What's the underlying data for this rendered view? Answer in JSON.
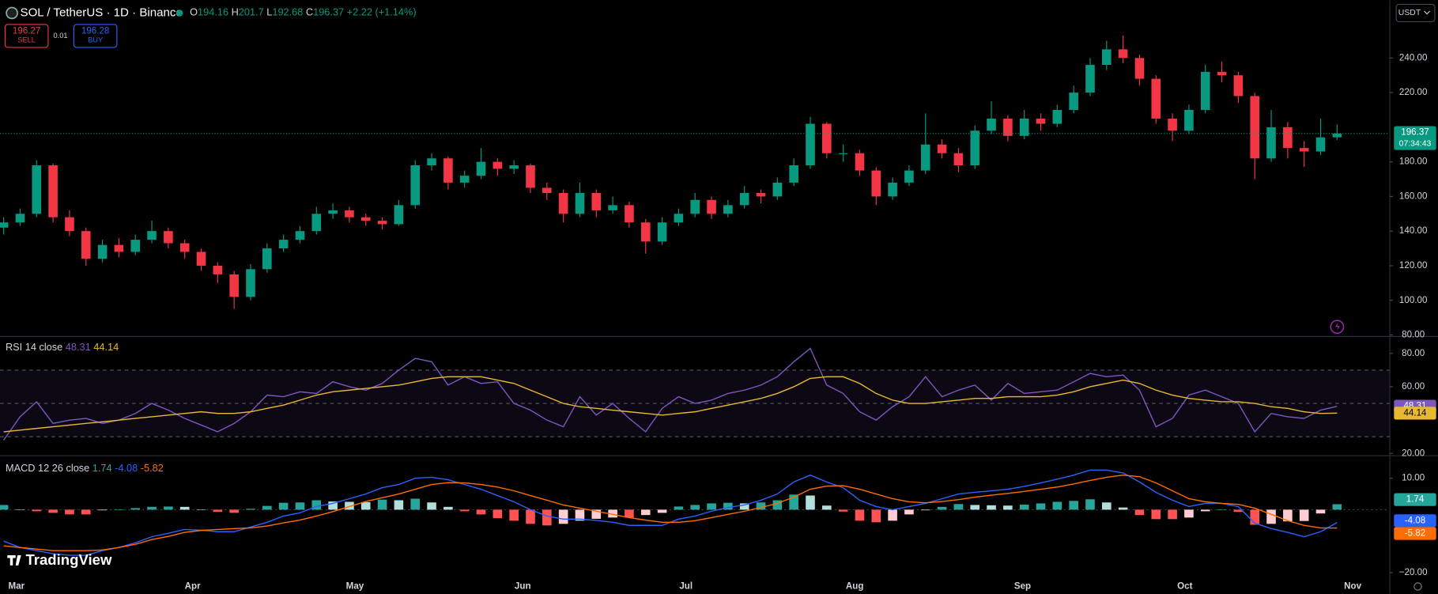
{
  "header": {
    "symbol": "SOL / TetherUS · 1D · Binance",
    "ohlc_labels": [
      "O",
      "H",
      "L",
      "C"
    ],
    "change": "+2.22 (+1.14%)",
    "sell_price": 196.27,
    "sell_label": "SELL",
    "spread": 0.01,
    "buy_price": 196.28,
    "buy_label": "BUY",
    "currency": "USDT",
    "brand": "TradingView"
  },
  "chart_data": [
    {
      "type": "candlestick",
      "up_color": "#089981",
      "down_color": "#f23645",
      "countdown": "07:34:43",
      "time_labels": [
        "Mar",
        "Apr",
        "May",
        "Jun",
        "Jul",
        "Aug",
        "Sep",
        "Oct",
        "Nov"
      ],
      "ylim": [
        79.4,
        273.4
      ],
      "yticks": [
        {
          "value": 80,
          "label": "80.00"
        },
        {
          "value": 100,
          "label": "100.00"
        },
        {
          "value": 120,
          "label": "120.00"
        },
        {
          "value": 140,
          "label": "140.00"
        },
        {
          "value": 160,
          "label": "160.00"
        },
        {
          "value": 180,
          "label": "180.00"
        },
        {
          "value": 220,
          "label": "220.00"
        },
        {
          "value": 240,
          "label": "240.00"
        }
      ],
      "candles": [
        [
          142,
          148,
          138,
          145
        ],
        [
          145,
          153,
          143,
          150
        ],
        [
          150,
          181,
          148,
          178
        ],
        [
          178,
          179,
          145,
          148
        ],
        [
          148,
          152,
          137,
          140
        ],
        [
          140,
          142,
          120,
          124
        ],
        [
          124,
          135,
          122,
          132
        ],
        [
          132,
          136,
          125,
          128
        ],
        [
          128,
          138,
          126,
          135
        ],
        [
          135,
          146,
          133,
          140
        ],
        [
          140,
          142,
          130,
          133
        ],
        [
          133,
          135,
          124,
          128
        ],
        [
          128,
          130,
          117,
          120
        ],
        [
          120,
          122,
          110,
          115
        ],
        [
          115,
          117,
          95,
          102
        ],
        [
          102,
          121,
          100,
          118
        ],
        [
          118,
          133,
          116,
          130
        ],
        [
          130,
          138,
          128,
          135
        ],
        [
          135,
          143,
          133,
          140
        ],
        [
          140,
          154,
          138,
          150
        ],
        [
          150,
          156,
          147,
          152
        ],
        [
          152,
          154,
          145,
          148
        ],
        [
          148,
          150,
          143,
          146
        ],
        [
          146,
          148,
          141,
          144
        ],
        [
          144,
          158,
          143,
          155
        ],
        [
          155,
          181,
          153,
          178
        ],
        [
          178,
          185,
          175,
          182
        ],
        [
          182,
          183,
          164,
          168
        ],
        [
          168,
          175,
          165,
          172
        ],
        [
          172,
          188,
          170,
          180
        ],
        [
          180,
          182,
          172,
          176
        ],
        [
          176,
          181,
          173,
          178
        ],
        [
          178,
          179,
          162,
          165
        ],
        [
          165,
          168,
          158,
          162
        ],
        [
          162,
          164,
          145,
          150
        ],
        [
          150,
          168,
          148,
          162
        ],
        [
          162,
          164,
          148,
          152
        ],
        [
          152,
          160,
          150,
          155
        ],
        [
          155,
          157,
          142,
          145
        ],
        [
          145,
          147,
          127,
          134
        ],
        [
          134,
          148,
          132,
          145
        ],
        [
          145,
          153,
          143,
          150
        ],
        [
          150,
          162,
          148,
          158
        ],
        [
          158,
          160,
          147,
          150
        ],
        [
          150,
          158,
          148,
          155
        ],
        [
          155,
          166,
          153,
          162
        ],
        [
          162,
          164,
          156,
          160
        ],
        [
          160,
          171,
          158,
          168
        ],
        [
          168,
          182,
          166,
          178
        ],
        [
          178,
          206,
          176,
          202
        ],
        [
          202,
          203,
          182,
          185
        ],
        [
          185,
          190,
          180,
          185
        ],
        [
          185,
          187,
          172,
          175
        ],
        [
          175,
          177,
          155,
          160
        ],
        [
          160,
          171,
          158,
          168
        ],
        [
          168,
          178,
          166,
          175
        ],
        [
          175,
          208,
          173,
          190
        ],
        [
          190,
          193,
          182,
          185
        ],
        [
          185,
          188,
          174,
          178
        ],
        [
          178,
          201,
          176,
          198
        ],
        [
          198,
          215,
          196,
          205
        ],
        [
          205,
          207,
          192,
          195
        ],
        [
          195,
          210,
          193,
          205
        ],
        [
          205,
          208,
          198,
          202
        ],
        [
          202,
          213,
          200,
          210
        ],
        [
          210,
          224,
          208,
          220
        ],
        [
          220,
          240,
          218,
          236
        ],
        [
          236,
          250,
          233,
          245
        ],
        [
          245,
          253,
          237,
          240
        ],
        [
          240,
          242,
          224,
          228
        ],
        [
          228,
          230,
          202,
          205
        ],
        [
          205,
          208,
          192,
          198
        ],
        [
          198,
          213,
          196,
          210
        ],
        [
          210,
          236,
          208,
          232
        ],
        [
          232,
          238,
          226,
          230
        ],
        [
          230,
          232,
          214,
          218
        ],
        [
          218,
          220,
          170,
          182
        ],
        [
          182,
          210,
          180,
          200
        ],
        [
          200,
          203,
          182,
          188
        ],
        [
          188,
          192,
          177,
          186
        ],
        [
          186,
          205,
          184,
          194.15
        ],
        [
          194.16,
          201.7,
          192.68,
          196.37
        ]
      ]
    },
    {
      "type": "rsi",
      "title": "RSI 14 close",
      "ylim": [
        18.9,
        89.9
      ],
      "band_levels": [
        30,
        50,
        70
      ],
      "band_color": "#7e57c2",
      "yticks": [
        {
          "value": 20,
          "label": "20.00"
        },
        {
          "value": 60,
          "label": "60.00"
        },
        {
          "value": 80,
          "label": "80.00"
        }
      ],
      "series": [
        {
          "color": "#7e57c2",
          "values": [
            28,
            42,
            51,
            38,
            40,
            41,
            38,
            40,
            44,
            50,
            46,
            41,
            37,
            33,
            38,
            45,
            55,
            54,
            57,
            56,
            63,
            60,
            58,
            62,
            70,
            77,
            75,
            61,
            66,
            62,
            63,
            50,
            46,
            40,
            36,
            54,
            43,
            50,
            41,
            33,
            47,
            54,
            50,
            52,
            56,
            58,
            61,
            66,
            75,
            83,
            61,
            56,
            45,
            40,
            48,
            54,
            66,
            54,
            58,
            61,
            52,
            62,
            56,
            57,
            58,
            63,
            68,
            66,
            67,
            58,
            36,
            41,
            55,
            58,
            54,
            50,
            33,
            44,
            42,
            41,
            46,
            48.31
          ]
        },
        {
          "color": "#e8b830",
          "values": [
            33,
            34,
            35,
            36,
            37,
            38,
            39,
            40,
            41,
            42,
            43,
            44,
            45,
            44,
            44,
            45,
            47,
            49,
            52,
            55,
            57,
            58,
            59,
            60,
            61,
            63,
            65,
            66,
            66,
            66,
            64,
            62,
            58,
            54,
            50,
            48,
            47,
            46,
            45,
            44,
            43,
            44,
            45,
            47,
            49,
            51,
            53,
            56,
            60,
            65,
            66,
            66,
            62,
            56,
            52,
            50,
            50,
            51,
            52,
            53,
            53,
            54,
            54,
            54,
            55,
            57,
            60,
            62,
            64,
            62,
            58,
            55,
            53,
            52,
            51,
            51,
            50,
            48,
            47,
            45,
            44,
            44.14
          ]
        }
      ]
    },
    {
      "type": "macd",
      "title": "MACD 12 26 close",
      "ylim": [
        -21.2,
        17
      ],
      "yticks": [
        {
          "value": -20,
          "label": "−20.00"
        },
        {
          "value": 10,
          "label": "10.00"
        }
      ],
      "histogram": {
        "colors": [
          "#26a69a",
          "#b2dfdb",
          "#ff5252",
          "#ffcdd2"
        ],
        "values": [
          1.5,
          0,
          -0.5,
          -1,
          -1.5,
          -1.5,
          -0.2,
          0,
          0.5,
          0.9,
          1,
          0.9,
          0.1,
          -0.7,
          -1,
          0.3,
          1.2,
          2.2,
          2.3,
          3,
          2.6,
          2.5,
          2.4,
          3.2,
          3,
          3.5,
          2.3,
          0.9,
          -0.5,
          -1.5,
          -2.7,
          -3.5,
          -4.5,
          -5,
          -4.5,
          -3.5,
          -2.9,
          -2.5,
          -2.5,
          -1.7,
          -1,
          1,
          1.5,
          2,
          2.2,
          2,
          2.3,
          3,
          4.8,
          4.5,
          1.3,
          -0.6,
          -3.5,
          -4,
          -3.5,
          -1.5,
          -0.2,
          0.9,
          1.8,
          1.5,
          1.4,
          1.3,
          1.6,
          2,
          2.5,
          2.8,
          3.3,
          2.3,
          0.7,
          -1.7,
          -3,
          -3,
          -2.5,
          -0.5,
          0,
          -0.7,
          -4.8,
          -4.5,
          -3.7,
          -3.6,
          -1.2,
          1.74
        ]
      },
      "series": [
        {
          "color": "#2962ff",
          "values": [
            -10,
            -12,
            -13,
            -14,
            -14.5,
            -14.5,
            -13,
            -12,
            -10.5,
            -8.6,
            -7.5,
            -6.3,
            -6.5,
            -7,
            -7,
            -5.5,
            -4,
            -2,
            -1,
            1,
            2,
            3.5,
            5,
            7,
            8,
            10,
            10.3,
            9.5,
            8,
            6.5,
            4.5,
            2.5,
            0,
            -2,
            -3,
            -3,
            -3.4,
            -4,
            -5,
            -5,
            -5,
            -3,
            -2,
            -0.5,
            0.7,
            1.5,
            3,
            5,
            8.8,
            11,
            8.8,
            7,
            3,
            1,
            0,
            1,
            2,
            3.5,
            5,
            5.5,
            6,
            6.5,
            7.4,
            8.5,
            9.7,
            11,
            12.6,
            12.6,
            11.7,
            8.8,
            5.5,
            3,
            1,
            2,
            2,
            1,
            -4.3,
            -6,
            -7.2,
            -8.6,
            -7,
            -4.08
          ]
        },
        {
          "color": "#ff6d00",
          "values": [
            -11.5,
            -12,
            -12.5,
            -13,
            -13,
            -13,
            -12.8,
            -12,
            -11,
            -9.5,
            -8.5,
            -7.2,
            -6.6,
            -6.3,
            -6,
            -5.8,
            -5.2,
            -4.2,
            -3.3,
            -2,
            -0.6,
            1,
            2.6,
            3.8,
            5,
            6.5,
            8,
            8.6,
            8.5,
            8,
            7.2,
            6,
            4.5,
            3,
            1.5,
            0.5,
            -0.5,
            -1.5,
            -2.5,
            -3.3,
            -4,
            -4,
            -3.5,
            -2.5,
            -1.5,
            -0.5,
            0.7,
            2,
            4,
            6.5,
            7.5,
            7.6,
            6.5,
            5,
            3.5,
            2.5,
            2.2,
            2.6,
            3.2,
            4,
            4.6,
            5.2,
            5.8,
            6.5,
            7.2,
            8.2,
            9.3,
            10.3,
            11,
            10.5,
            8.5,
            6,
            3.5,
            2.5,
            2,
            1.7,
            0.5,
            -1.5,
            -3.5,
            -5,
            -5.8,
            -5.82
          ]
        }
      ]
    }
  ]
}
